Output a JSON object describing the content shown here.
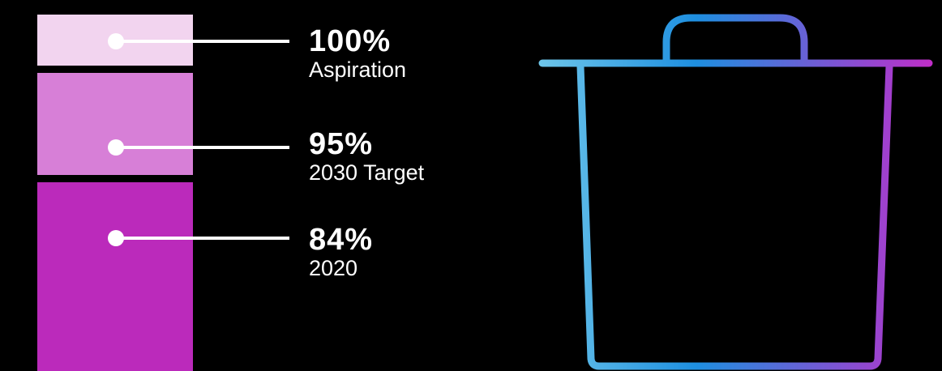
{
  "levels": [
    {
      "percent": "100%",
      "label": "Aspiration",
      "value": 100,
      "color": "#f2d4ef"
    },
    {
      "percent": "95%",
      "label": "2030 Target",
      "value": 95,
      "color": "#d77fd7"
    },
    {
      "percent": "84%",
      "label": "2020",
      "value": 84,
      "color": "#bb2abb"
    }
  ],
  "icon": {
    "name": "trash-bin-icon",
    "gradient": [
      "#6ec6ea",
      "#1e8fe0",
      "#7b55d4",
      "#c02ec8"
    ]
  }
}
